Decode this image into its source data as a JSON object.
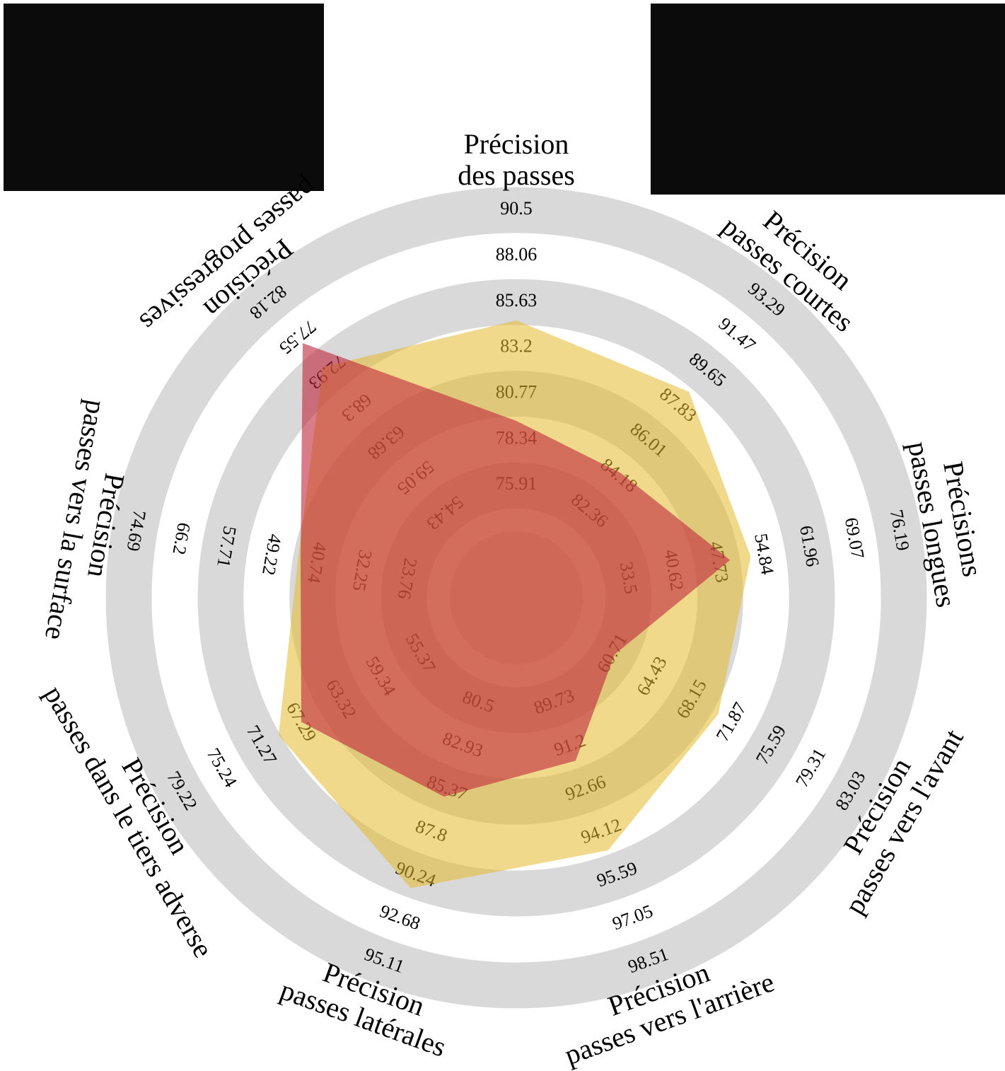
{
  "chart_data": {
    "type": "radar",
    "params": [
      [
        "Précision",
        "des passes"
      ],
      [
        "Précision",
        "passes courtes"
      ],
      [
        "Précisions",
        "passes longues"
      ],
      [
        "Précision",
        "passes vers l'avant"
      ],
      [
        "Précision",
        "passes vers l'arrière"
      ],
      [
        "Précision",
        "passes latérales"
      ],
      [
        "Précision",
        "passes dans le tiers adverse"
      ],
      [
        "Précision",
        "passes vers la surface"
      ],
      [
        "Précision",
        "passes progressives"
      ]
    ],
    "lims": [
      [
        73.48,
        90.5
      ],
      [
        80.54,
        93.29
      ],
      [
        26.39,
        76.19
      ],
      [
        56.99,
        83.03
      ],
      [
        88.27,
        98.51
      ],
      [
        78.07,
        95.11
      ],
      [
        51.4,
        79.22
      ],
      [
        15.27,
        74.69
      ],
      [
        49.8,
        82.18
      ]
    ],
    "ticks": [
      [
        75.91,
        78.34,
        80.77,
        83.2,
        85.63,
        88.06,
        90.5
      ],
      [
        82.36,
        84.18,
        86.01,
        87.83,
        89.65,
        91.47,
        93.29
      ],
      [
        33.5,
        40.62,
        47.73,
        54.84,
        61.96,
        69.07,
        76.19
      ],
      [
        60.71,
        64.43,
        68.15,
        71.87,
        75.59,
        79.31,
        83.03
      ],
      [
        89.73,
        91.2,
        92.66,
        94.12,
        95.59,
        97.05,
        98.51
      ],
      [
        80.5,
        82.93,
        85.37,
        87.8,
        90.24,
        92.68,
        95.11
      ],
      [
        55.37,
        59.34,
        63.32,
        67.29,
        71.27,
        75.24,
        79.22
      ],
      [
        23.76,
        32.25,
        40.74,
        49.22,
        57.71,
        66.2,
        74.69
      ],
      [
        54.43,
        59.05,
        63.68,
        68.3,
        72.93,
        77.55,
        82.18
      ]
    ],
    "series": [
      {
        "color": "#e6b92e",
        "values": [
          84.65,
          88.57,
          53.0,
          70.5,
          94.72,
          90.94,
          69.42,
          44.0,
          73.48
        ]
      },
      {
        "color": "#c0243c",
        "values": [
          79.33,
          84.36,
          49.75,
          60.8,
          91.68,
          85.77,
          67.15,
          43.5,
          76.6
        ]
      }
    ]
  }
}
